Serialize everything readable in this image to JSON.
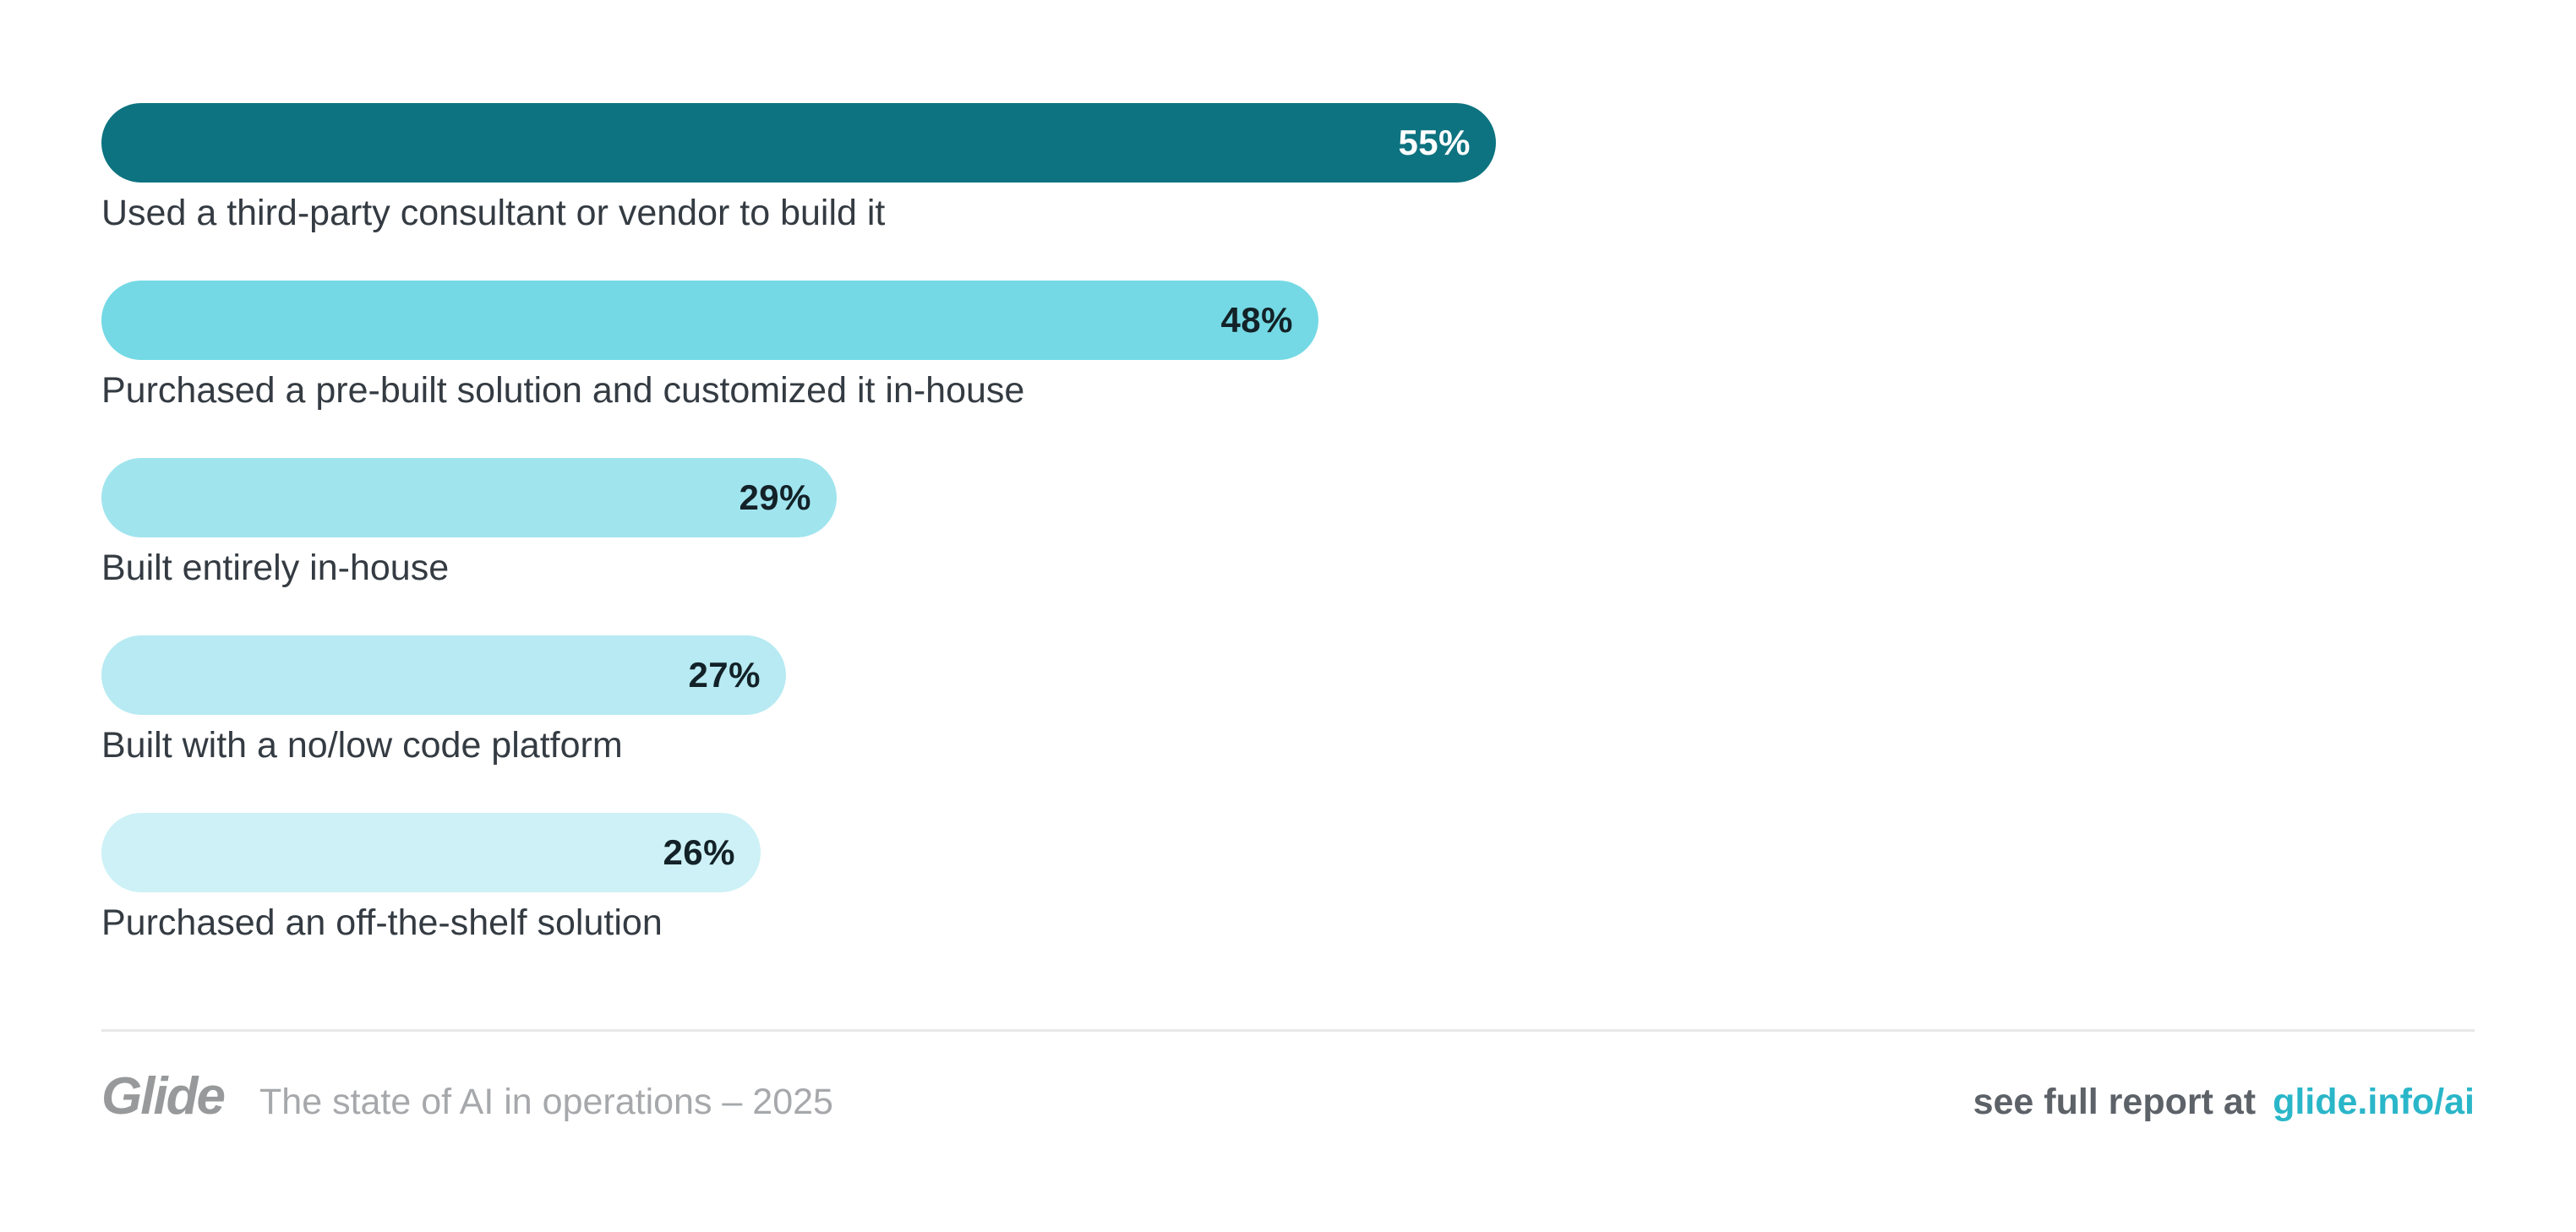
{
  "chart_data": {
    "type": "bar",
    "orientation": "horizontal",
    "categories": [
      "Used a third-party consultant or vendor to build it",
      "Purchased a pre-built solution and customized it in-house",
      "Built entirely in-house",
      "Built with a no/low code platform",
      "Purchased an off-the-shelf solution"
    ],
    "values": [
      55,
      48,
      29,
      27,
      26
    ],
    "value_labels": [
      "55%",
      "48%",
      "29%",
      "27%",
      "26%"
    ],
    "bar_colors": [
      "#0d7380",
      "#74d9e4",
      "#a0e4ee",
      "#b7eaf2",
      "#cdf1f6"
    ],
    "value_text_colors": [
      "#ffffff",
      "#132228",
      "#132228",
      "#132228",
      "#132228"
    ],
    "xlim": [
      0,
      100
    ],
    "grid": false,
    "legend": false,
    "bar_shape": "pill",
    "value_label_position": "inside-end"
  },
  "footer": {
    "logo_text": "Glide",
    "caption": "The state of AI in operations – 2025",
    "report_prefix": "see full report at",
    "report_link": "glide.info/ai"
  },
  "colors": {
    "background": "#ffffff",
    "accent_teal": "#0d7380",
    "link_cyan": "#2ab6c9",
    "divider": "#e8e8e8",
    "category_label_text": "#343b42",
    "logo_gray": "#97999b",
    "caption_gray": "#a6a8ab",
    "footer_text_gray": "#5d6269"
  }
}
